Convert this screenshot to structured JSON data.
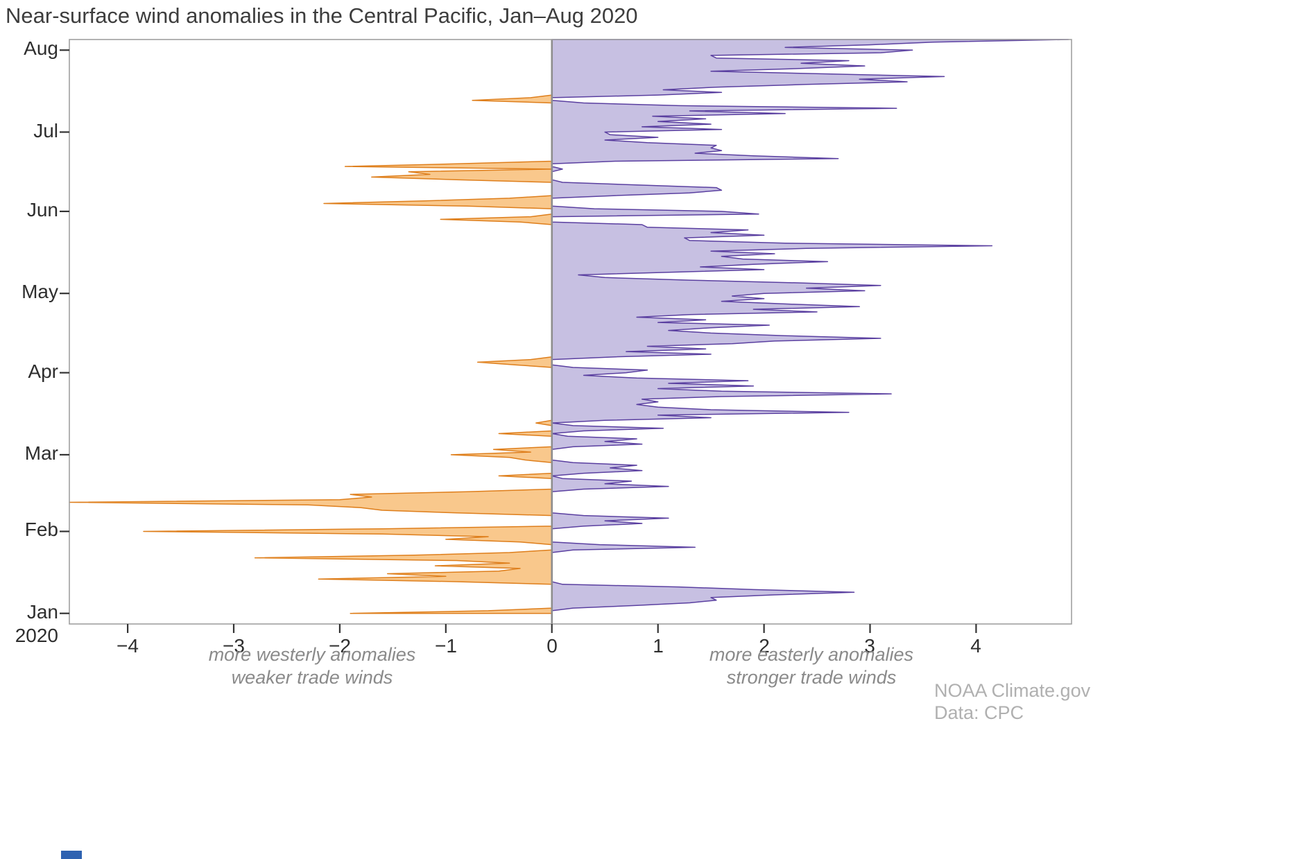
{
  "annotations": {
    "left_line1": "more westerly anomalies",
    "left_line2": "weaker trade winds",
    "right_line1": "more easterly anomalies",
    "right_line2": "stronger trade winds"
  },
  "credit": {
    "line1": "NOAA Climate.gov",
    "line2": "Data: CPC"
  },
  "chart_data": {
    "type": "area",
    "title": "Near-surface wind anomalies in the Central Pacific, Jan–Aug 2020",
    "xlabel": "",
    "ylabel": "",
    "orientation": "vertical-time-axis, values on horizontal axis",
    "grid": false,
    "legend": "none",
    "x_axis": {
      "range": [
        -4.55,
        4.9
      ],
      "tick_values": [
        -4,
        -3,
        -2,
        -1,
        0,
        1,
        2,
        3,
        4
      ],
      "tick_labels": [
        "−4",
        "−3",
        "−2",
        "−1",
        "0",
        "1",
        "2",
        "3",
        "4"
      ]
    },
    "y_axis": {
      "month_ticks": [
        "Jan",
        "Feb",
        "Mar",
        "Apr",
        "May",
        "Jun",
        "Jul",
        "Aug"
      ],
      "year_label": "2020",
      "start_date": "2020-01-01",
      "end_date": "2020-08-05"
    },
    "colors": {
      "negative_fill": "#f9c88c",
      "negative_stroke": "#de7e1b",
      "positive_fill": "#c7c0e2",
      "positive_stroke": "#5a3fa0",
      "zero_line": "#8e8e8e",
      "frame": "#a0a0a0",
      "tick": "#333333"
    },
    "series_note": "daily zonal wind anomaly, negative = westerly (weaker trades), positive = easterly (stronger trades)",
    "values_daily": [
      -1.9,
      -0.6,
      0.2,
      0.8,
      1.3,
      1.55,
      1.5,
      2.1,
      2.85,
      1.9,
      1.2,
      0.1,
      -0.9,
      -2.2,
      -1.0,
      -1.55,
      -0.5,
      -0.3,
      -1.1,
      -0.4,
      -0.9,
      -2.8,
      -1.3,
      -0.4,
      0.2,
      1.35,
      0.45,
      -0.3,
      -1.0,
      -0.6,
      -1.6,
      -3.85,
      -1.6,
      0.3,
      0.85,
      0.5,
      1.1,
      0.3,
      -0.9,
      -1.6,
      -1.8,
      -2.3,
      -4.55,
      -2.0,
      -1.7,
      -1.9,
      -0.8,
      0.3,
      1.1,
      0.5,
      0.75,
      0.1,
      -0.5,
      0.3,
      0.85,
      0.55,
      0.8,
      0.2,
      -0.25,
      -0.4,
      -0.95,
      -0.2,
      -0.55,
      0.2,
      0.85,
      0.5,
      0.8,
      0.15,
      -0.5,
      0.3,
      1.05,
      0.2,
      -0.15,
      0.5,
      1.5,
      1.0,
      2.8,
      1.5,
      1.0,
      0.8,
      1.0,
      0.85,
      1.6,
      3.2,
      1.6,
      1.0,
      1.9,
      1.1,
      1.85,
      0.8,
      0.3,
      0.7,
      0.9,
      0.2,
      -0.35,
      -0.7,
      -0.2,
      0.6,
      1.5,
      0.7,
      1.45,
      0.9,
      1.7,
      2.1,
      3.1,
      2.2,
      1.5,
      1.1,
      1.5,
      2.05,
      1.0,
      1.45,
      0.8,
      1.3,
      2.5,
      1.9,
      2.9,
      2.2,
      1.6,
      2.0,
      1.7,
      2.0,
      2.95,
      2.4,
      3.1,
      2.3,
      1.3,
      0.5,
      0.25,
      1.1,
      2.0,
      1.4,
      1.9,
      2.6,
      1.8,
      1.6,
      2.1,
      1.5,
      2.4,
      4.15,
      2.2,
      1.3,
      1.25,
      2.0,
      1.5,
      1.85,
      0.9,
      0.85,
      -0.3,
      -1.05,
      -0.2,
      1.95,
      1.6,
      0.4,
      -0.8,
      -2.15,
      -1.2,
      -0.4,
      0.6,
      1.3,
      1.6,
      1.55,
      0.8,
      0.1,
      -0.9,
      -1.7,
      -1.15,
      -1.35,
      0.1,
      -1.95,
      -0.9,
      0.6,
      2.7,
      1.9,
      1.35,
      1.6,
      1.5,
      1.55,
      0.9,
      0.5,
      1.0,
      0.55,
      0.5,
      1.6,
      0.85,
      1.5,
      1.0,
      1.45,
      0.95,
      2.2,
      1.3,
      3.25,
      1.2,
      0.3,
      -0.75,
      -0.2,
      1.0,
      1.6,
      1.05,
      1.55,
      2.4,
      3.35,
      2.9,
      3.7,
      2.6,
      1.5,
      2.3,
      2.95,
      2.35,
      2.8,
      1.55,
      1.5,
      3.1,
      3.4,
      2.2,
      3.0,
      3.6,
      4.87
    ]
  }
}
